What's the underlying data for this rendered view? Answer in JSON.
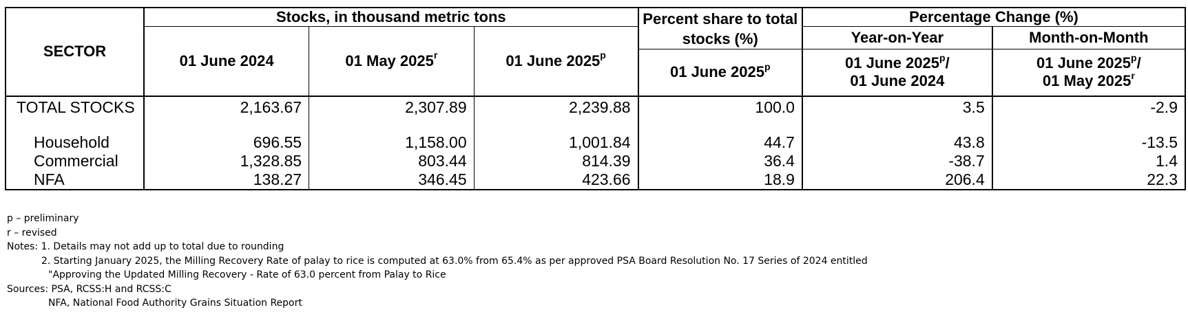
{
  "table": {
    "sector_header": "SECTOR",
    "stocks_group_header": "Stocks, in thousand metric tons",
    "share_header": "Percent share to total stocks (%)",
    "pct_change_header": "Percentage Change (%)",
    "yoy_header": "Year-on-Year",
    "mom_header": "Month-on-Month",
    "col_jun2024": "01 June 2024",
    "col_may2025": "01 May 2025",
    "col_may2025_mark": "r",
    "col_jun2025": "01 June 2025",
    "col_jun2025_mark": "p",
    "share_col": "01 June 2025",
    "share_col_mark": "p",
    "yoy_col_line1": "01 June 2025",
    "yoy_col_line1_mark": "p",
    "yoy_col_line1_suffix": "/",
    "yoy_col_line2": "01 June 2024",
    "mom_col_line1": "01 June 2025",
    "mom_col_line1_mark": "p",
    "mom_col_line1_suffix": "/",
    "mom_col_line2": "01 May 2025",
    "mom_col_line2_mark": "r",
    "rows": [
      {
        "sector": "TOTAL STOCKS",
        "jun2024": "2,163.67",
        "may2025": "2,307.89",
        "jun2025": "2,239.88",
        "share": "100.0",
        "yoy": "3.5",
        "mom": "-2.9"
      },
      {
        "sector": "Household",
        "jun2024": "696.55",
        "may2025": "1,158.00",
        "jun2025": "1,001.84",
        "share": "44.7",
        "yoy": "43.8",
        "mom": "-13.5"
      },
      {
        "sector": "Commercial",
        "jun2024": "1,328.85",
        "may2025": "803.44",
        "jun2025": "814.39",
        "share": "36.4",
        "yoy": "-38.7",
        "mom": "1.4"
      },
      {
        "sector": "NFA",
        "jun2024": "138.27",
        "may2025": "346.45",
        "jun2025": "423.66",
        "share": "18.9",
        "yoy": "206.4",
        "mom": "22.3"
      }
    ]
  },
  "notes": {
    "legend_p": "p – preliminary",
    "legend_r": "r – revised",
    "notes_line1": "Notes: 1. Details may not add up to total due to rounding",
    "notes_line2": "2. Starting January 2025, the Milling Recovery Rate of palay to rice is computed at 63.0% from 65.4% as per approved PSA Board Resolution No. 17 Series of 2024 entitled",
    "notes_line3": "\"Approving  the Updated Milling Recovery - Rate of 63.0 percent from Palay to Rice",
    "sources_line1": "Sources: PSA, RCSS:H and RCSS:C",
    "sources_line2": "NFA, National Food Authority Grains Situation Report"
  }
}
